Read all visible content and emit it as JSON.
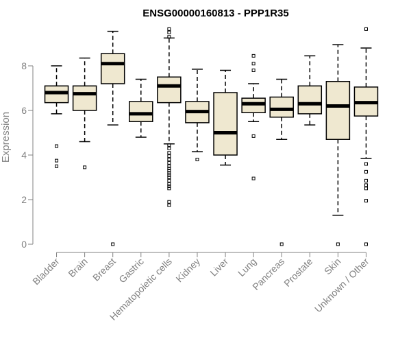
{
  "chart_data": {
    "type": "boxplot",
    "title": "ENSG00000160813 - PPP1R35",
    "ylabel": "Expression",
    "xlabel": "",
    "ylim": [
      0,
      9.7
    ],
    "yticks": [
      0,
      2,
      4,
      6,
      8
    ],
    "grid": false,
    "colors": {
      "box_fill": "#efe8d0",
      "median": "#000000",
      "axis": "#808080",
      "text": "#808080"
    },
    "categories": [
      "Bladder",
      "Brain",
      "Breast",
      "Gastric",
      "Hematopoietic cells",
      "Kidney",
      "Liver",
      "Lung",
      "Pancreas",
      "Prostate",
      "Skin",
      "Unknown / Other"
    ],
    "boxes": [
      {
        "label": "Bladder",
        "whisker_low": 5.85,
        "q1": 6.35,
        "median": 6.8,
        "q3": 7.1,
        "whisker_high": 8.0,
        "outliers": [
          4.4,
          3.75,
          3.5
        ]
      },
      {
        "label": "Brain",
        "whisker_low": 4.6,
        "q1": 6.0,
        "median": 6.75,
        "q3": 7.1,
        "whisker_high": 8.35,
        "outliers": [
          3.45
        ]
      },
      {
        "label": "Breast",
        "whisker_low": 5.35,
        "q1": 7.2,
        "median": 8.1,
        "q3": 8.55,
        "whisker_high": 9.55,
        "outliers": [
          0.0
        ]
      },
      {
        "label": "Gastric",
        "whisker_low": 4.8,
        "q1": 5.5,
        "median": 5.85,
        "q3": 6.4,
        "whisker_high": 7.4,
        "outliers": []
      },
      {
        "label": "Hematopoietic cells",
        "whisker_low": 4.5,
        "q1": 6.35,
        "median": 7.1,
        "q3": 7.5,
        "whisker_high": 9.25,
        "outliers": [
          9.65,
          9.5,
          9.3,
          4.45,
          4.3,
          4.1,
          3.95,
          3.8,
          3.65,
          3.5,
          3.4,
          3.3,
          3.2,
          3.1,
          3.0,
          2.85,
          2.7,
          2.6,
          2.5,
          1.9,
          1.75
        ]
      },
      {
        "label": "Kidney",
        "whisker_low": 4.15,
        "q1": 5.45,
        "median": 5.95,
        "q3": 6.4,
        "whisker_high": 7.85,
        "outliers": [
          3.8
        ]
      },
      {
        "label": "Liver",
        "whisker_low": 3.55,
        "q1": 4.0,
        "median": 5.0,
        "q3": 6.8,
        "whisker_high": 7.8,
        "outliers": []
      },
      {
        "label": "Lung",
        "whisker_low": 5.5,
        "q1": 5.9,
        "median": 6.3,
        "q3": 6.55,
        "whisker_high": 7.2,
        "outliers": [
          8.45,
          8.1,
          7.8,
          4.85,
          2.95
        ]
      },
      {
        "label": "Pancreas",
        "whisker_low": 4.7,
        "q1": 5.7,
        "median": 6.05,
        "q3": 6.6,
        "whisker_high": 7.4,
        "outliers": [
          0.0
        ]
      },
      {
        "label": "Prostate",
        "whisker_low": 5.35,
        "q1": 5.85,
        "median": 6.3,
        "q3": 7.1,
        "whisker_high": 8.45,
        "outliers": []
      },
      {
        "label": "Skin",
        "whisker_low": 1.3,
        "q1": 4.7,
        "median": 6.2,
        "q3": 7.3,
        "whisker_high": 8.95,
        "outliers": [
          0.0
        ]
      },
      {
        "label": "Unknown / Other",
        "whisker_low": 3.85,
        "q1": 5.75,
        "median": 6.35,
        "q3": 7.05,
        "whisker_high": 8.8,
        "outliers": [
          9.65,
          3.6,
          3.25,
          2.85,
          2.65,
          2.5,
          1.95,
          0.0
        ]
      }
    ]
  }
}
